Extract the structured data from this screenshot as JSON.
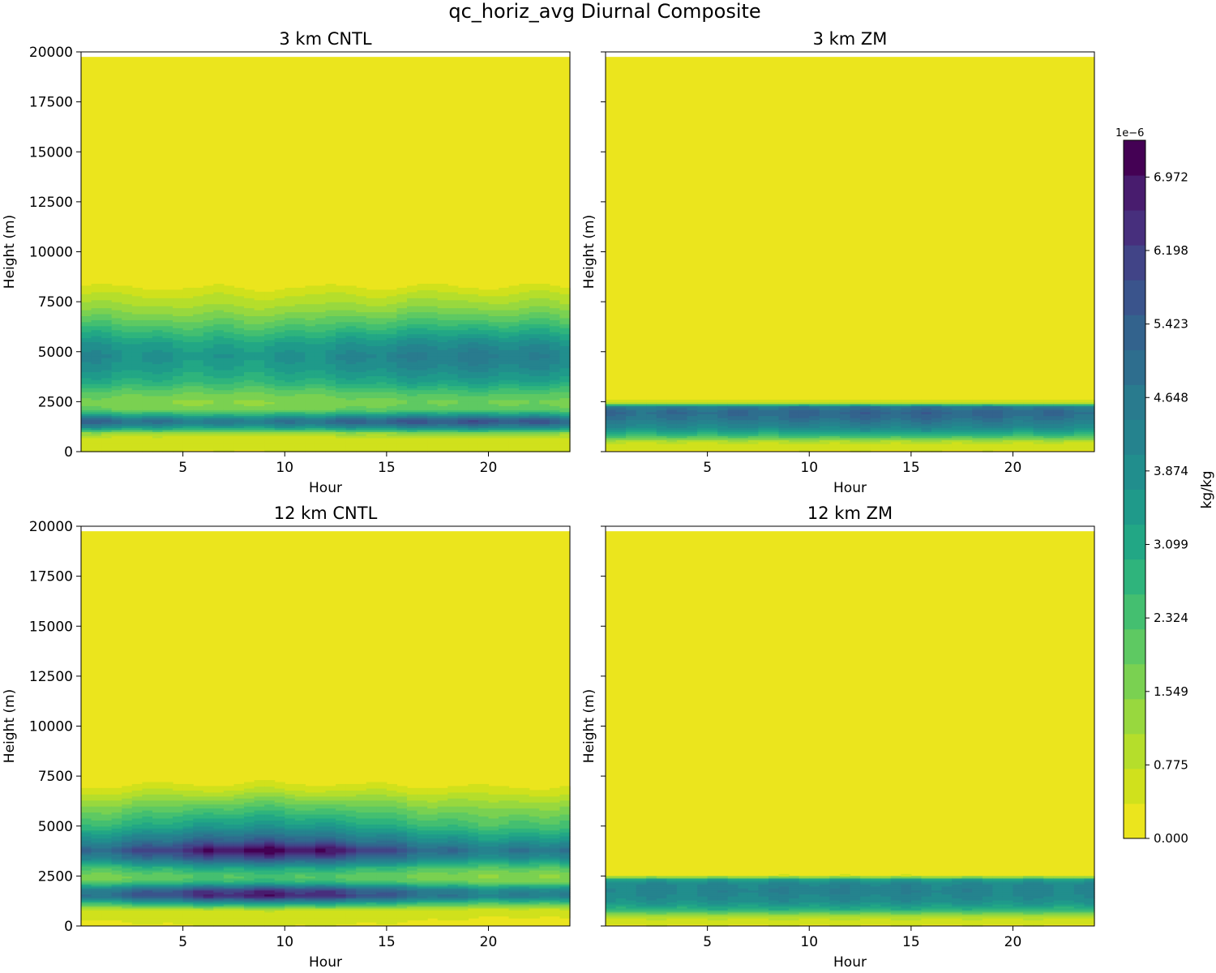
{
  "chart_data": {
    "type": "contour",
    "suptitle": "qc_horiz_avg Diurnal Composite",
    "colorbar": {
      "label": "kg/kg",
      "exponent": "1e−6",
      "range": [
        0,
        7.36
      ],
      "tick_labels": [
        "0.000",
        "0.775",
        "1.549",
        "2.324",
        "3.099",
        "3.874",
        "4.648",
        "5.423",
        "6.198",
        "6.972"
      ],
      "tick_values": [
        0,
        0.775,
        1.549,
        2.324,
        3.099,
        3.874,
        4.648,
        5.423,
        6.198,
        6.972
      ],
      "levels": 19,
      "colors": [
        "#ebe51d",
        "#d0e11c",
        "#b5de2b",
        "#98d83e",
        "#7ad151",
        "#5ec962",
        "#44bf70",
        "#2fb47c",
        "#22a785",
        "#1f9a8a",
        "#218e8d",
        "#25838e",
        "#297b8e",
        "#2e6e8e",
        "#33638d",
        "#3a548c",
        "#414487",
        "#472f7d",
        "#481c6e",
        "#440154"
      ]
    },
    "panels": [
      {
        "title": "3 km CNTL",
        "xlabel": "Hour",
        "ylabel": "Height (m)",
        "xlim": [
          0,
          24
        ],
        "ylim": [
          0,
          20000
        ],
        "xticks": [
          "5",
          "10",
          "15",
          "20"
        ],
        "yticks": [
          "0",
          "2500",
          "5000",
          "7500",
          "10000",
          "12500",
          "15000",
          "17500",
          "20000"
        ],
        "show_yticklabels": true,
        "top_valid_height": 19750,
        "profile": [
          [
            0,
            0.4
          ],
          [
            700,
            0.6
          ],
          [
            950,
            1.4
          ],
          [
            1200,
            3.6
          ],
          [
            1450,
            5.0
          ],
          [
            1600,
            5.1
          ],
          [
            1800,
            3.6
          ],
          [
            2100,
            1.9
          ],
          [
            2500,
            1.6
          ],
          [
            2900,
            2.0
          ],
          [
            3500,
            3.0
          ],
          [
            4200,
            3.7
          ],
          [
            4800,
            4.05
          ],
          [
            5400,
            3.6
          ],
          [
            6000,
            2.8
          ],
          [
            6600,
            2.0
          ],
          [
            7200,
            1.3
          ],
          [
            7800,
            0.8
          ],
          [
            8300,
            0.3
          ],
          [
            8700,
            0.1
          ],
          [
            20000,
            0
          ]
        ],
        "diurnal": {
          "amp": 0.12,
          "phase_hr": 19
        },
        "top_undulation_m": 150
      },
      {
        "title": "3 km ZM",
        "xlabel": "Hour",
        "ylabel": "Height (m)",
        "xlim": [
          0,
          24
        ],
        "ylim": [
          0,
          20000
        ],
        "xticks": [
          "5",
          "10",
          "15",
          "20"
        ],
        "yticks": [
          "0",
          "2500",
          "5000",
          "7500",
          "10000",
          "12500",
          "15000",
          "17500",
          "20000"
        ],
        "show_yticklabels": false,
        "top_valid_height": 19750,
        "profile": [
          [
            0,
            0.3
          ],
          [
            500,
            0.8
          ],
          [
            800,
            2.5
          ],
          [
            1200,
            4.0
          ],
          [
            1700,
            4.9
          ],
          [
            2000,
            5.2
          ],
          [
            2250,
            4.6
          ],
          [
            2450,
            1.0
          ],
          [
            2600,
            0.1
          ],
          [
            20000,
            0
          ]
        ],
        "diurnal": {
          "amp": 0.03,
          "phase_hr": 14
        },
        "top_undulation_m": 0
      },
      {
        "title": "12 km CNTL",
        "xlabel": "Hour",
        "ylabel": "Height (m)",
        "xlim": [
          0,
          24
        ],
        "ylim": [
          0,
          20000
        ],
        "xticks": [
          "5",
          "10",
          "15",
          "20"
        ],
        "yticks": [
          "0",
          "2500",
          "5000",
          "7500",
          "10000",
          "12500",
          "15000",
          "17500",
          "20000"
        ],
        "show_yticklabels": true,
        "top_valid_height": 19750,
        "profile": [
          [
            0,
            0.3
          ],
          [
            800,
            0.6
          ],
          [
            1100,
            2.5
          ],
          [
            1500,
            5.6
          ],
          [
            1800,
            5.2
          ],
          [
            2200,
            2.3
          ],
          [
            2500,
            1.8
          ],
          [
            2900,
            2.6
          ],
          [
            3400,
            4.8
          ],
          [
            3800,
            6.0
          ],
          [
            4300,
            4.5
          ],
          [
            5000,
            3.0
          ],
          [
            5800,
            2.0
          ],
          [
            6400,
            1.2
          ],
          [
            7000,
            0.4
          ],
          [
            7400,
            0.1
          ],
          [
            20000,
            0
          ]
        ],
        "diurnal": {
          "amp": 0.22,
          "phase_hr": 9
        },
        "top_undulation_m": 180
      },
      {
        "title": "12 km ZM",
        "xlabel": "Hour",
        "ylabel": "Height (m)",
        "xlim": [
          0,
          24
        ],
        "ylim": [
          0,
          20000
        ],
        "xticks": [
          "5",
          "10",
          "15",
          "20"
        ],
        "yticks": [
          "0",
          "2500",
          "5000",
          "7500",
          "10000",
          "12500",
          "15000",
          "17500",
          "20000"
        ],
        "show_yticklabels": false,
        "top_valid_height": 19750,
        "profile": [
          [
            0,
            0.3
          ],
          [
            500,
            0.9
          ],
          [
            800,
            2.7
          ],
          [
            1200,
            3.8
          ],
          [
            1700,
            4.25
          ],
          [
            2100,
            4.15
          ],
          [
            2350,
            3.3
          ],
          [
            2500,
            0.5
          ],
          [
            2650,
            0.05
          ],
          [
            20000,
            0
          ]
        ],
        "diurnal": {
          "amp": 0.02,
          "phase_hr": 12
        },
        "top_undulation_m": 0
      }
    ]
  }
}
